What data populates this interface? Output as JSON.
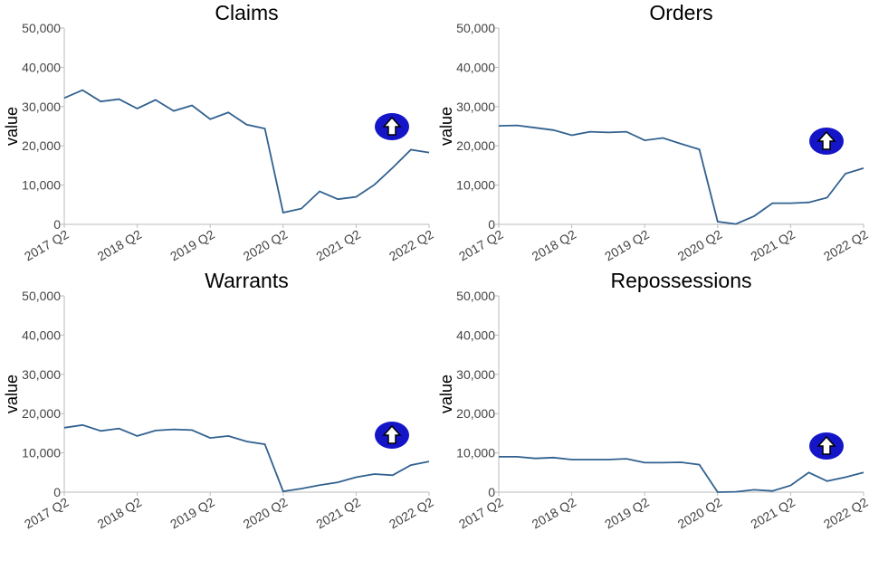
{
  "chart_data": [
    {
      "type": "line",
      "title": "Claims",
      "ylabel": "value",
      "color": "#31618f",
      "categories": [
        "2017 Q2",
        null,
        null,
        null,
        "2018 Q2",
        null,
        null,
        null,
        "2019 Q2",
        null,
        null,
        null,
        "2020 Q2",
        null,
        null,
        null,
        "2021 Q2",
        null,
        null,
        null,
        "2022 Q2"
      ],
      "values": [
        32200,
        34200,
        31300,
        31900,
        29500,
        31700,
        28900,
        30300,
        26800,
        28500,
        25400,
        24400,
        3000,
        4000,
        8400,
        6400,
        7000,
        10100,
        14400,
        19000,
        18300
      ],
      "ylim": [
        0,
        50000
      ],
      "yticks": [
        0,
        {
          "value": 10000,
          "label": "10,000"
        },
        {
          "value": 20000,
          "label": "20,000"
        },
        {
          "value": 30000,
          "label": "30,000"
        },
        {
          "value": 40000,
          "label": "40,000"
        },
        {
          "value": 50000,
          "label": "50,000"
        }
      ]
    },
    {
      "type": "line",
      "title": "Orders",
      "ylabel": "value",
      "color": "#31618f",
      "categories": [
        "2017 Q2",
        null,
        null,
        null,
        "2018 Q2",
        null,
        null,
        null,
        "2019 Q2",
        null,
        null,
        null,
        "2020 Q2",
        null,
        null,
        null,
        "2021 Q2",
        null,
        null,
        null,
        "2022 Q2"
      ],
      "values": [
        25100,
        25200,
        24600,
        24000,
        22700,
        23600,
        23400,
        23600,
        21400,
        22000,
        20500,
        19100,
        700,
        100,
        2100,
        5400,
        5400,
        5600,
        6800,
        12900,
        14300
      ],
      "ylim": [
        0,
        50000
      ],
      "yticks": [
        0,
        {
          "value": 10000,
          "label": "10,000"
        },
        {
          "value": 20000,
          "label": "20,000"
        },
        {
          "value": 30000,
          "label": "30,000"
        },
        {
          "value": 40000,
          "label": "40,000"
        },
        {
          "value": 50000,
          "label": "50,000"
        }
      ]
    },
    {
      "type": "line",
      "title": "Warrants",
      "ylabel": "value",
      "color": "#31618f",
      "categories": [
        "2017 Q2",
        null,
        null,
        null,
        "2018 Q2",
        null,
        null,
        null,
        "2019 Q2",
        null,
        null,
        null,
        "2020 Q2",
        null,
        null,
        null,
        "2021 Q2",
        null,
        null,
        null,
        "2022 Q2"
      ],
      "values": [
        16400,
        17100,
        15600,
        16200,
        14300,
        15700,
        16000,
        15800,
        13800,
        14300,
        12900,
        12200,
        200,
        900,
        1800,
        2500,
        3800,
        4600,
        4300,
        6900,
        7800
      ],
      "ylim": [
        0,
        50000
      ],
      "yticks": [
        0,
        {
          "value": 10000,
          "label": "10,000"
        },
        {
          "value": 20000,
          "label": "20,000"
        },
        {
          "value": 30000,
          "label": "30,000"
        },
        {
          "value": 40000,
          "label": "40,000"
        },
        {
          "value": 50000,
          "label": "50,000"
        }
      ]
    },
    {
      "type": "line",
      "title": "Repossessions",
      "ylabel": "value",
      "color": "#31618f",
      "categories": [
        "2017 Q2",
        null,
        null,
        null,
        "2018 Q2",
        null,
        null,
        null,
        "2019 Q2",
        null,
        null,
        null,
        "2020 Q2",
        null,
        null,
        null,
        "2021 Q2",
        null,
        null,
        null,
        "2022 Q2"
      ],
      "values": [
        9000,
        9000,
        8600,
        8800,
        8300,
        8300,
        8300,
        8500,
        7500,
        7500,
        7600,
        7000,
        0,
        100,
        600,
        300,
        1700,
        5000,
        2800,
        3800,
        5000
      ],
      "ylim": [
        0,
        50000
      ],
      "yticks": [
        0,
        {
          "value": 10000,
          "label": "10,000"
        },
        {
          "value": 20000,
          "label": "20,000"
        },
        {
          "value": 30000,
          "label": "30,000"
        },
        {
          "value": 40000,
          "label": "40,000"
        },
        {
          "value": 50000,
          "label": "50,000"
        }
      ]
    }
  ]
}
